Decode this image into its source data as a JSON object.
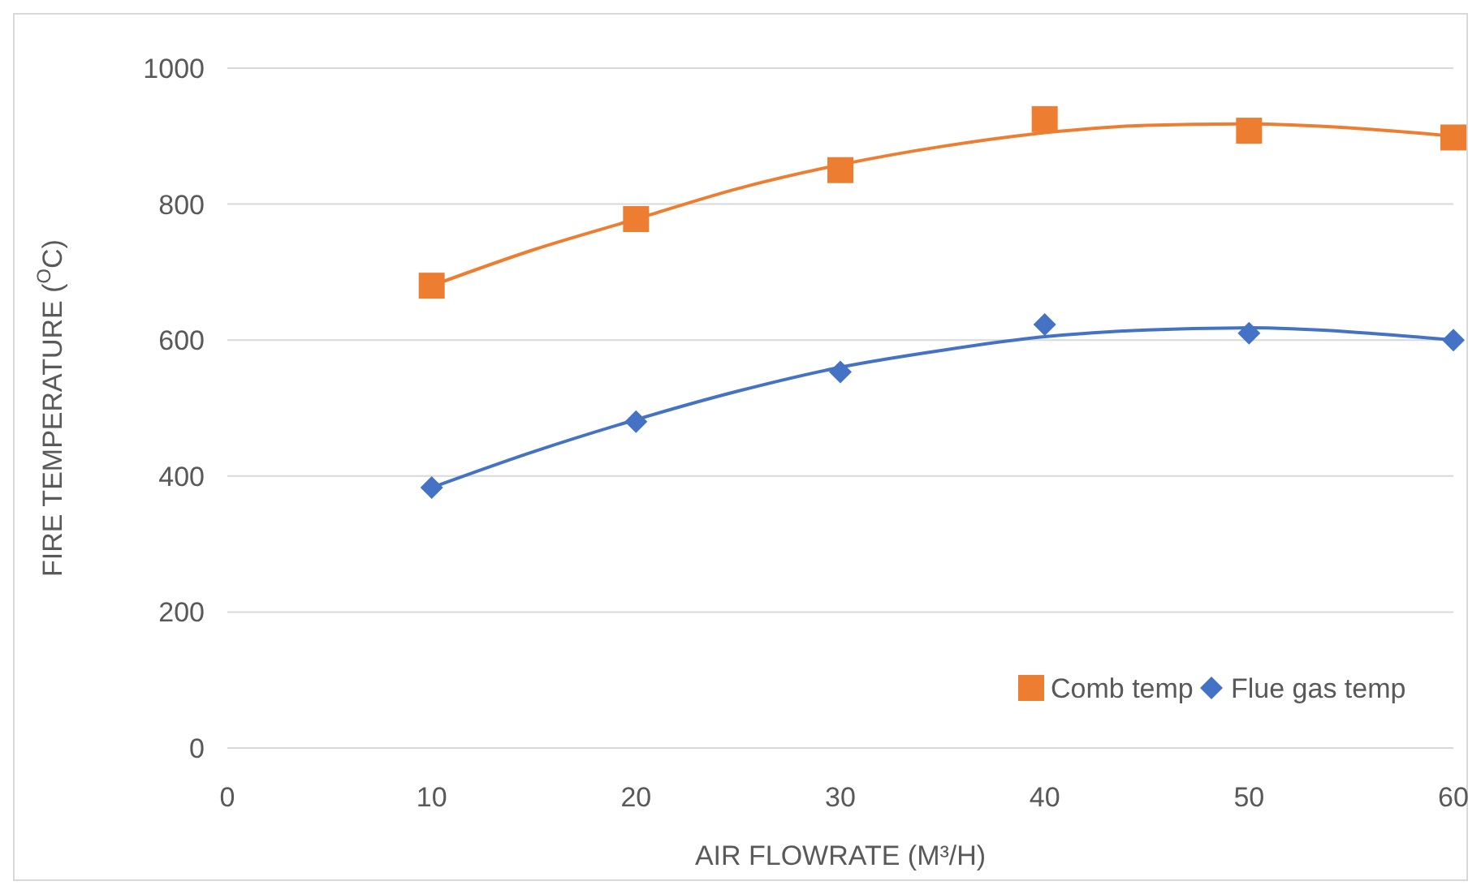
{
  "chart_data": {
    "type": "scatter",
    "xlabel": "AIR FLOWRATE (M³/H)",
    "ylabel": "FIRE TEMPERATURE ($^{O}$C)",
    "x": [
      10,
      20,
      30,
      40,
      50,
      60
    ],
    "series": [
      {
        "name": "Comb temp",
        "color": "#ed7d31",
        "marker": "square",
        "values": [
          680,
          778,
          850,
          925,
          908,
          898
        ]
      },
      {
        "name": "Flue gas temp",
        "color": "#4472c4",
        "marker": "diamond",
        "values": [
          383,
          480,
          553,
          623,
          610,
          600
        ]
      },
      {
        "type": "line",
        "color": "#ed7d31",
        "marker": "none",
        "x": [
          10,
          15,
          20,
          25,
          30,
          35,
          40,
          45,
          50,
          55,
          60
        ],
        "values": [
          680,
          733,
          778,
          823,
          858,
          885,
          905,
          916,
          918,
          912,
          900
        ]
      },
      {
        "type": "line",
        "color": "#4472c4",
        "marker": "none",
        "x": [
          10,
          15,
          20,
          25,
          30,
          35,
          40,
          45,
          50,
          55,
          60
        ],
        "values": [
          383,
          436,
          483,
          525,
          560,
          585,
          605,
          615,
          618,
          612,
          600
        ]
      }
    ],
    "xlim": [
      0,
      60
    ],
    "xticks": [
      0,
      10,
      20,
      30,
      40,
      50,
      60
    ],
    "ylim": [
      0,
      1000
    ],
    "yticks": [
      0,
      200,
      400,
      600,
      800,
      1000
    ],
    "grid": "y",
    "legend": "bottom right"
  }
}
